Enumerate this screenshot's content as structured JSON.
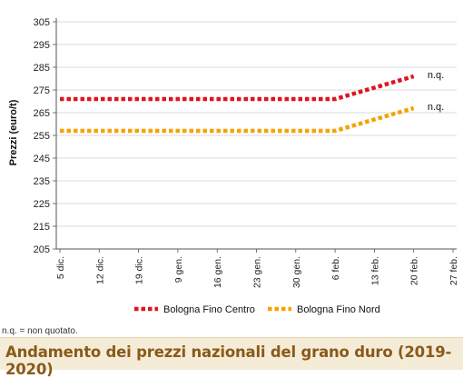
{
  "chart_data": {
    "type": "line",
    "title": "Andamento dei prezzi nazionali del grano duro (2019-2020)",
    "xlabel": "",
    "ylabel": "Prezzi (euro/t)",
    "ylim": [
      205,
      305
    ],
    "yticks": [
      205,
      215,
      225,
      235,
      245,
      255,
      265,
      275,
      285,
      295,
      305
    ],
    "categories": [
      "5 dic.",
      "12 dic.",
      "19 dic.",
      "9 gen.",
      "16 gen.",
      "23 gen.",
      "30 gen.",
      "6 feb.",
      "13 feb.",
      "20 feb.",
      "27 feb."
    ],
    "grid": "horizontal",
    "legend_position": "bottom",
    "series": [
      {
        "name": "Bologna Fino Centro",
        "color": "#e0141e",
        "values": [
          271,
          271,
          271,
          271,
          271,
          271,
          271,
          271,
          276,
          281,
          null
        ],
        "end_label": "n.q."
      },
      {
        "name": "Bologna Fino Nord",
        "color": "#f5a300",
        "values": [
          257,
          257,
          257,
          257,
          257,
          257,
          257,
          257,
          262,
          267,
          null
        ],
        "end_label": "n.q."
      }
    ],
    "footnote": "n.q. = non quotato."
  }
}
